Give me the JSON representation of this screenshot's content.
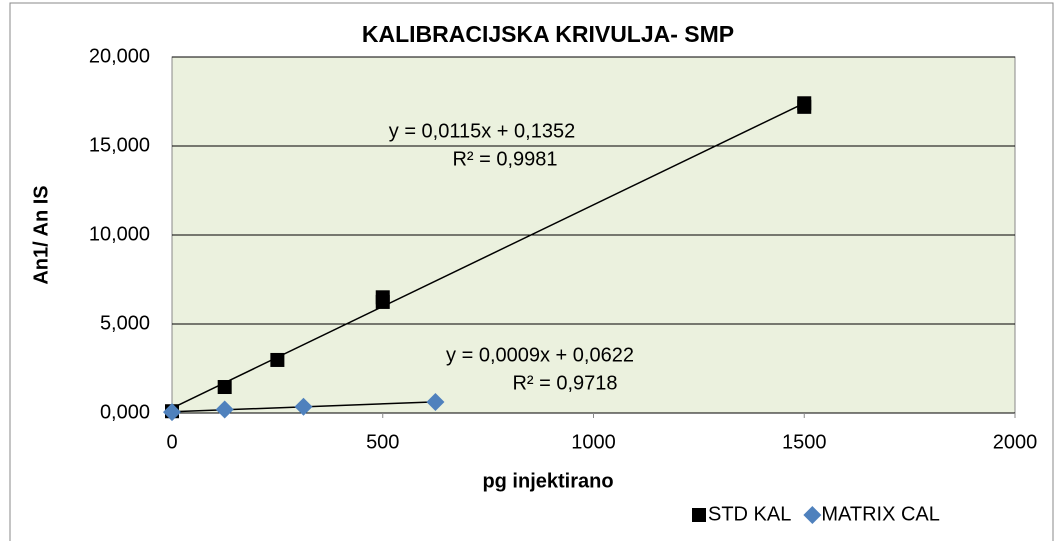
{
  "chart_data": {
    "type": "scatter",
    "title": "KALIBRACIJSKA KRIVULJA- SMP",
    "x_label": "pg injektirano",
    "y_label": "An1/ An IS",
    "xlim": [
      0,
      2000
    ],
    "xticks": [
      0,
      500,
      1000,
      1500,
      2000
    ],
    "ylim": [
      0,
      20
    ],
    "yticks": [
      {
        "value": 0,
        "label": "0,000"
      },
      {
        "value": 5,
        "label": "5,000"
      },
      {
        "value": 10,
        "label": "10,000"
      },
      {
        "value": 15,
        "label": "15,000"
      },
      {
        "value": 20,
        "label": "20,000"
      }
    ],
    "grid": true,
    "legend": "bottom-right",
    "series": [
      {
        "name": "STD KAL",
        "color": "#000000",
        "marker": "square",
        "x": [
          0,
          125,
          250,
          500,
          500,
          1500,
          1500
        ],
        "values": [
          0.1,
          1.46,
          2.98,
          6.24,
          6.5,
          17.2,
          17.4
        ]
      },
      {
        "name": "MATRIX CAL",
        "color": "#4f81bd",
        "marker": "diamond",
        "x": [
          0,
          125,
          312,
          625
        ],
        "values": [
          0.05,
          0.2,
          0.35,
          0.62
        ]
      }
    ],
    "annotations": [
      {
        "text": "y = 0,0115x + 0,1352",
        "series": 0
      },
      {
        "text": "R² = 0,9981",
        "series": 0
      },
      {
        "text": "y = 0,0009x + 0,0622",
        "series": 1
      },
      {
        "text": "R² = 0,9718",
        "series": 1
      }
    ]
  }
}
